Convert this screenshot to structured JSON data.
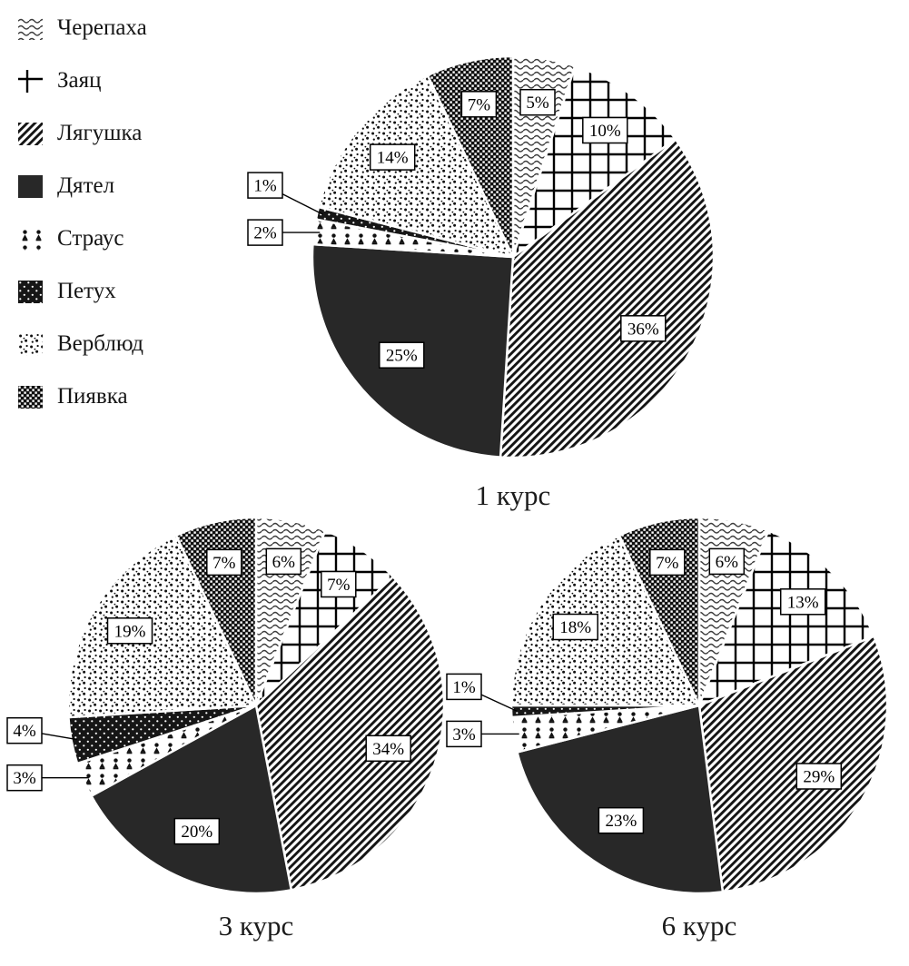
{
  "page": {
    "background": "#ffffff",
    "text_color": "#161616"
  },
  "legend": {
    "items": [
      {
        "label": "Черепаха",
        "pattern": "turtle"
      },
      {
        "label": "Заяц",
        "pattern": "hare"
      },
      {
        "label": "Лягушка",
        "pattern": "frog"
      },
      {
        "label": "Дятел",
        "pattern": "woodpecker"
      },
      {
        "label": "Страус",
        "pattern": "ostrich"
      },
      {
        "label": "Петух",
        "pattern": "rooster"
      },
      {
        "label": "Верблюд",
        "pattern": "camel"
      },
      {
        "label": "Пиявка",
        "pattern": "leech"
      }
    ]
  },
  "chart_data": [
    {
      "type": "pie",
      "title": "1 курс",
      "unit": "%",
      "start_angle_deg": 0,
      "direction": "clockwise",
      "legend_position": "top-left",
      "outside_label_threshold": 4,
      "categories": [
        "Черепаха",
        "Заяц",
        "Лягушка",
        "Дятел",
        "Страус",
        "Петух",
        "Верблюд",
        "Пиявка"
      ],
      "values": [
        5,
        10,
        36,
        25,
        2,
        1,
        14,
        7
      ]
    },
    {
      "type": "pie",
      "title": "3 курс",
      "unit": "%",
      "start_angle_deg": 0,
      "direction": "clockwise",
      "legend_position": "top-left",
      "outside_label_threshold": 4,
      "categories": [
        "Черепаха",
        "Заяц",
        "Лягушка",
        "Дятел",
        "Страус",
        "Петух",
        "Верблюд",
        "Пиявка"
      ],
      "values": [
        6,
        7,
        34,
        20,
        3,
        4,
        19,
        7
      ]
    },
    {
      "type": "pie",
      "title": "6 курс",
      "unit": "%",
      "start_angle_deg": 0,
      "direction": "clockwise",
      "legend_position": "top-left",
      "outside_label_threshold": 4,
      "categories": [
        "Черепаха",
        "Заяц",
        "Лягушка",
        "Дятел",
        "Страус",
        "Петух",
        "Верблюд",
        "Пиявка"
      ],
      "values": [
        6,
        13,
        29,
        23,
        3,
        1,
        18,
        7
      ]
    }
  ],
  "label_colors": {
    "box_fill": "#ffffff",
    "box_border": "#000000",
    "slice_dark": "#282828"
  }
}
